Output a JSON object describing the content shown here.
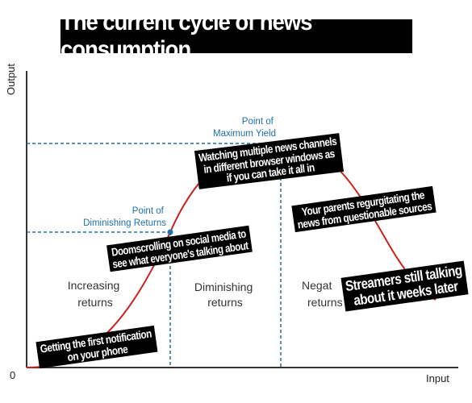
{
  "title": "The current cycle of news consumption",
  "axes": {
    "y_label": "Output",
    "x_label": "Input",
    "origin": "0"
  },
  "regions": {
    "increasing": [
      "Increasing",
      "returns"
    ],
    "diminishing": [
      "Diminishing",
      "returns"
    ],
    "negative": [
      "Negat",
      "returns"
    ]
  },
  "points": {
    "max_yield": [
      "Point of",
      "Maximum Yield"
    ],
    "diminishing": [
      "Point of",
      "Diminishing Returns"
    ]
  },
  "captions": {
    "first_notification": [
      "Getting the first notification",
      "on your phone"
    ],
    "doomscrolling": [
      "Doomscrolling on social media to",
      "see what everyone's talking about"
    ],
    "multiple_channels": [
      "Watching multiple news channels",
      "in different browser windows as",
      "if you can take it all in"
    ],
    "parents": [
      "Your parents regurgitating the",
      "news from questionable sources"
    ],
    "streamers": [
      "Streamers still talking",
      "about it weeks later"
    ]
  },
  "colors": {
    "curve": "#cc1f1f",
    "guide": "#1f6fa8",
    "axis": "#333333",
    "caption_bg": "#000000",
    "caption_fg": "#ffffff"
  }
}
